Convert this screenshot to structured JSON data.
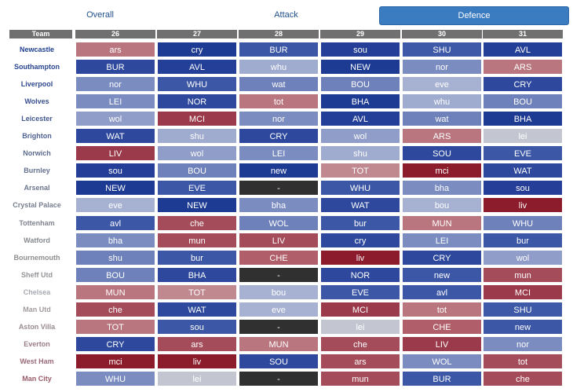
{
  "tabs": [
    {
      "label": "Overall",
      "active": false
    },
    {
      "label": "Attack",
      "active": false
    },
    {
      "label": "Defence",
      "active": true
    }
  ],
  "columns": [
    "Team",
    "26",
    "27",
    "28",
    "29",
    "30",
    "31"
  ],
  "rows": [
    {
      "team": "Newcastle",
      "team_color": "#1f3f8f",
      "cells": [
        {
          "t": "ars",
          "c": "#b9767f"
        },
        {
          "t": "cry",
          "c": "#1e3b93"
        },
        {
          "t": "BUR",
          "c": "#3c57a6"
        },
        {
          "t": "sou",
          "c": "#253f98"
        },
        {
          "t": "SHU",
          "c": "#3d59a8"
        },
        {
          "t": "AVL",
          "c": "#243f97"
        }
      ]
    },
    {
      "team": "Southampton",
      "team_color": "#2a468f",
      "cells": [
        {
          "t": "BUR",
          "c": "#2d489c"
        },
        {
          "t": "AVL",
          "c": "#243f97"
        },
        {
          "t": "whu",
          "c": "#9fabcf"
        },
        {
          "t": "NEW",
          "c": "#1e3b93"
        },
        {
          "t": "nor",
          "c": "#7a8cc0"
        },
        {
          "t": "ARS",
          "c": "#b9767f"
        }
      ]
    },
    {
      "team": "Liverpool",
      "team_color": "#30498f",
      "cells": [
        {
          "t": "nor",
          "c": "#7a8cc0"
        },
        {
          "t": "WHU",
          "c": "#3c57a6"
        },
        {
          "t": "wat",
          "c": "#6e81ba"
        },
        {
          "t": "BOU",
          "c": "#6e81ba"
        },
        {
          "t": "eve",
          "c": "#a7b2d3"
        },
        {
          "t": "CRY",
          "c": "#2d489c"
        }
      ]
    },
    {
      "team": "Wolves",
      "team_color": "#39508f",
      "cells": [
        {
          "t": "LEI",
          "c": "#7a8cc0"
        },
        {
          "t": "NOR",
          "c": "#2d489c"
        },
        {
          "t": "tot",
          "c": "#b9767f"
        },
        {
          "t": "BHA",
          "c": "#1e3b93"
        },
        {
          "t": "whu",
          "c": "#9fabcf"
        },
        {
          "t": "BOU",
          "c": "#6e81ba"
        }
      ]
    },
    {
      "team": "Leicester",
      "team_color": "#44598f",
      "cells": [
        {
          "t": "wol",
          "c": "#8f9dc8"
        },
        {
          "t": "MCI",
          "c": "#9b3a4a"
        },
        {
          "t": "nor",
          "c": "#7a8cc0"
        },
        {
          "t": "AVL",
          "c": "#243f97"
        },
        {
          "t": "wat",
          "c": "#6e81ba"
        },
        {
          "t": "BHA",
          "c": "#1e3b93"
        }
      ]
    },
    {
      "team": "Brighton",
      "team_color": "#50628f",
      "cells": [
        {
          "t": "WAT",
          "c": "#2d489c"
        },
        {
          "t": "shu",
          "c": "#9fabcf"
        },
        {
          "t": "CRY",
          "c": "#2d489c"
        },
        {
          "t": "wol",
          "c": "#8f9dc8"
        },
        {
          "t": "ARS",
          "c": "#b9767f"
        },
        {
          "t": "lei",
          "c": "#c3c6d0"
        }
      ]
    },
    {
      "team": "Norwich",
      "team_color": "#5b6a8f",
      "cells": [
        {
          "t": "LIV",
          "c": "#9b3a4a"
        },
        {
          "t": "wol",
          "c": "#8f9dc8"
        },
        {
          "t": "LEI",
          "c": "#7a8cc0"
        },
        {
          "t": "shu",
          "c": "#9fabcf"
        },
        {
          "t": "SOU",
          "c": "#2d489c"
        },
        {
          "t": "EVE",
          "c": "#3c57a6"
        }
      ]
    },
    {
      "team": "Burnley",
      "team_color": "#64708f",
      "cells": [
        {
          "t": "sou",
          "c": "#253f98"
        },
        {
          "t": "BOU",
          "c": "#6e81ba"
        },
        {
          "t": "new",
          "c": "#1e3b93"
        },
        {
          "t": "TOT",
          "c": "#c08990"
        },
        {
          "t": "mci",
          "c": "#8c1c2c"
        },
        {
          "t": "WAT",
          "c": "#2d489c"
        }
      ]
    },
    {
      "team": "Arsenal",
      "team_color": "#6d778f",
      "cells": [
        {
          "t": "NEW",
          "c": "#1e3b93"
        },
        {
          "t": "EVE",
          "c": "#3c57a6"
        },
        {
          "t": "-",
          "c": "#303030"
        },
        {
          "t": "WHU",
          "c": "#3c57a6"
        },
        {
          "t": "bha",
          "c": "#7a8cc0"
        },
        {
          "t": "sou",
          "c": "#253f98"
        }
      ]
    },
    {
      "team": "Crystal Palace",
      "team_color": "#767e8f",
      "cells": [
        {
          "t": "eve",
          "c": "#a7b2d3"
        },
        {
          "t": "NEW",
          "c": "#1e3b93"
        },
        {
          "t": "bha",
          "c": "#7a8cc0"
        },
        {
          "t": "WAT",
          "c": "#2d489c"
        },
        {
          "t": "bou",
          "c": "#a7b2d3"
        },
        {
          "t": "liv",
          "c": "#8c1c2c"
        }
      ]
    },
    {
      "team": "Tottenham",
      "team_color": "#7f848f",
      "cells": [
        {
          "t": "avl",
          "c": "#3c57a6"
        },
        {
          "t": "che",
          "c": "#a44c5a"
        },
        {
          "t": "WOL",
          "c": "#6e81ba"
        },
        {
          "t": "bur",
          "c": "#3c57a6"
        },
        {
          "t": "MUN",
          "c": "#b9767f"
        },
        {
          "t": "WHU",
          "c": "#6e81ba"
        }
      ]
    },
    {
      "team": "Watford",
      "team_color": "#878a8f",
      "cells": [
        {
          "t": "bha",
          "c": "#7a8cc0"
        },
        {
          "t": "mun",
          "c": "#a44c5a"
        },
        {
          "t": "LIV",
          "c": "#a44c5a"
        },
        {
          "t": "cry",
          "c": "#2d489c"
        },
        {
          "t": "LEI",
          "c": "#7a8cc0"
        },
        {
          "t": "bur",
          "c": "#3c57a6"
        }
      ]
    },
    {
      "team": "Bournemouth",
      "team_color": "#8e8f93",
      "cells": [
        {
          "t": "shu",
          "c": "#6e81ba"
        },
        {
          "t": "bur",
          "c": "#3c57a6"
        },
        {
          "t": "CHE",
          "c": "#b05e6a"
        },
        {
          "t": "liv",
          "c": "#8c1c2c"
        },
        {
          "t": "CRY",
          "c": "#2d489c"
        },
        {
          "t": "wol",
          "c": "#8f9dc8"
        }
      ]
    },
    {
      "team": "Sheff Utd",
      "team_color": "#95959a",
      "cells": [
        {
          "t": "BOU",
          "c": "#6e81ba"
        },
        {
          "t": "BHA",
          "c": "#2d489c"
        },
        {
          "t": "-",
          "c": "#303030"
        },
        {
          "t": "NOR",
          "c": "#2d489c"
        },
        {
          "t": "new",
          "c": "#3c57a6"
        },
        {
          "t": "mun",
          "c": "#a44c5a"
        }
      ]
    },
    {
      "team": "Chelsea",
      "team_color": "#a8aab2",
      "cells": [
        {
          "t": "MUN",
          "c": "#b9767f"
        },
        {
          "t": "TOT",
          "c": "#c08990"
        },
        {
          "t": "bou",
          "c": "#a7b2d3"
        },
        {
          "t": "EVE",
          "c": "#3c57a6"
        },
        {
          "t": "avl",
          "c": "#3c57a6"
        },
        {
          "t": "MCI",
          "c": "#9b3a4a"
        }
      ]
    },
    {
      "team": "Man Utd",
      "team_color": "#a39aa0",
      "cells": [
        {
          "t": "che",
          "c": "#a44c5a"
        },
        {
          "t": "WAT",
          "c": "#2d489c"
        },
        {
          "t": "eve",
          "c": "#a7b2d3"
        },
        {
          "t": "MCI",
          "c": "#9b3a4a"
        },
        {
          "t": "tot",
          "c": "#b9767f"
        },
        {
          "t": "SHU",
          "c": "#3d59a8"
        }
      ]
    },
    {
      "team": "Aston Villa",
      "team_color": "#9a8a92",
      "cells": [
        {
          "t": "TOT",
          "c": "#b9767f"
        },
        {
          "t": "sou",
          "c": "#3c57a6"
        },
        {
          "t": "-",
          "c": "#303030"
        },
        {
          "t": "lei",
          "c": "#c3c6d0"
        },
        {
          "t": "CHE",
          "c": "#b05e6a"
        },
        {
          "t": "new",
          "c": "#3c57a6"
        }
      ]
    },
    {
      "team": "Everton",
      "team_color": "#9a7b86",
      "cells": [
        {
          "t": "CRY",
          "c": "#2d489c"
        },
        {
          "t": "ars",
          "c": "#a44c5a"
        },
        {
          "t": "MUN",
          "c": "#b9767f"
        },
        {
          "t": "che",
          "c": "#a44c5a"
        },
        {
          "t": "LIV",
          "c": "#9b3a4a"
        },
        {
          "t": "nor",
          "c": "#7a8cc0"
        }
      ]
    },
    {
      "team": "West Ham",
      "team_color": "#9a6b78",
      "cells": [
        {
          "t": "mci",
          "c": "#8c1c2c"
        },
        {
          "t": "liv",
          "c": "#8c1c2c"
        },
        {
          "t": "SOU",
          "c": "#2d489c"
        },
        {
          "t": "ars",
          "c": "#a44c5a"
        },
        {
          "t": "WOL",
          "c": "#7a8cc0"
        },
        {
          "t": "tot",
          "c": "#a44c5a"
        }
      ]
    },
    {
      "team": "Man City",
      "team_color": "#9a5b68",
      "cells": [
        {
          "t": "WHU",
          "c": "#7a8cc0"
        },
        {
          "t": "lei",
          "c": "#c3c6d0"
        },
        {
          "t": "-",
          "c": "#303030"
        },
        {
          "t": "mun",
          "c": "#a44c5a"
        },
        {
          "t": "BUR",
          "c": "#3c57a6"
        },
        {
          "t": "che",
          "c": "#a44c5a"
        }
      ]
    }
  ]
}
